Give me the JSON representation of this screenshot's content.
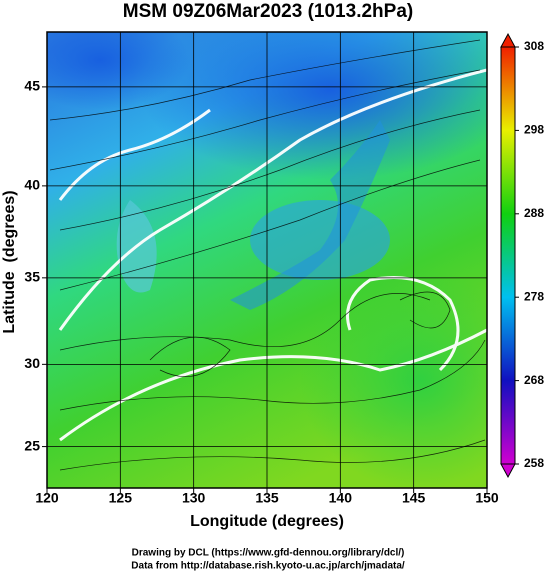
{
  "chart_data": {
    "type": "map",
    "projection": "mercator",
    "title": "MSM 09Z06Mar2023 (1013.2hPa)",
    "x_label": "Longitude (degrees)",
    "y_label": "Latitude  (degrees)",
    "xlim": [
      120,
      150
    ],
    "ylim": [
      22.4,
      47.6
    ],
    "xticks": [
      120,
      125,
      130,
      135,
      140,
      145,
      150
    ],
    "yticks": [
      25,
      30,
      35,
      40,
      45
    ],
    "grid": true,
    "colorbar": {
      "lim": [
        258,
        308
      ],
      "ticks": [
        258,
        268,
        278,
        288,
        298,
        308
      ]
    },
    "credits": [
      "Drawing by DCL (https://www.gfd-dennou.org/library/dcl/)",
      "Data from http://database.rish.kyoto-u.ac.jp/arch/jmadata/"
    ]
  }
}
